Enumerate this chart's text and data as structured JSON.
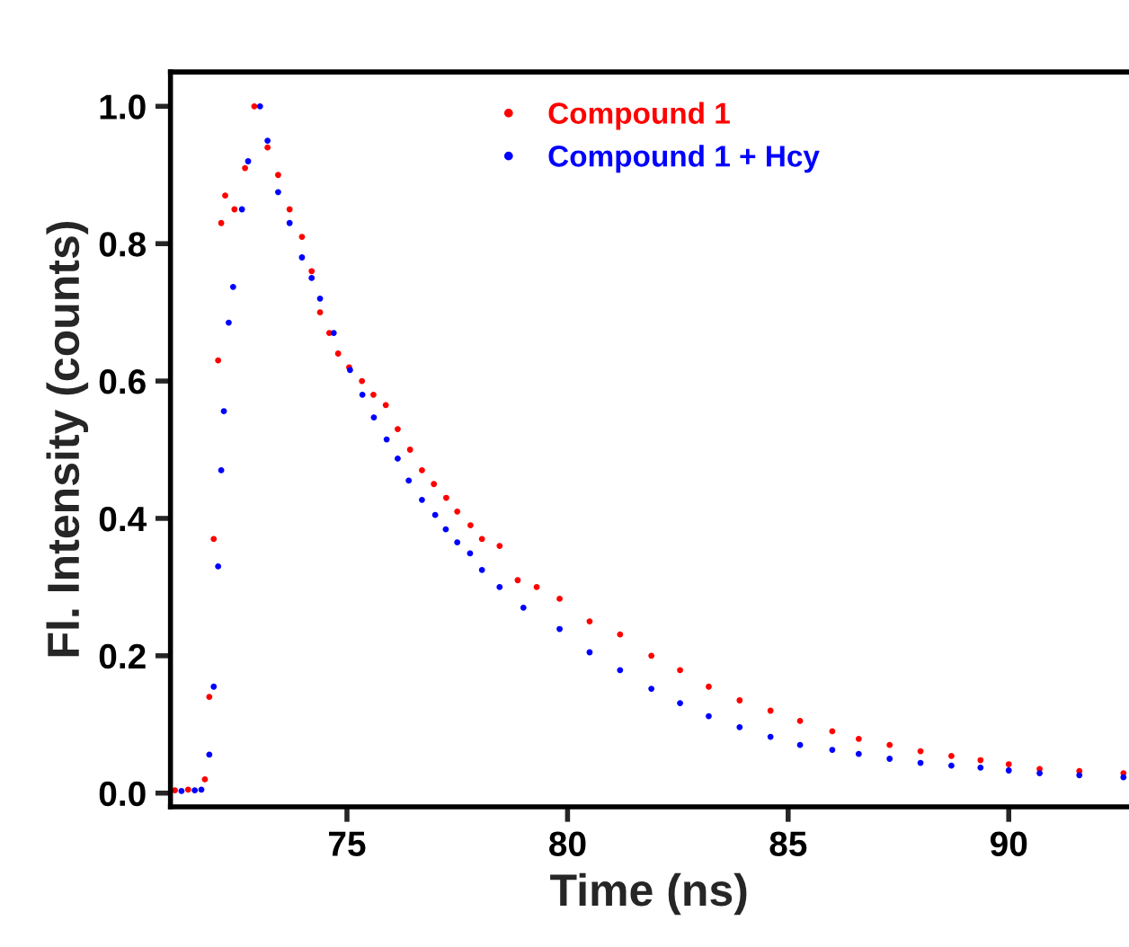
{
  "chart_data": {
    "type": "scatter",
    "xlabel": "Time (ns)",
    "ylabel": "Fl. Intensity (counts)",
    "xlim": [
      71,
      92.7
    ],
    "xticks": [
      75,
      80,
      85,
      90
    ],
    "ylim": [
      -0.02,
      1.05
    ],
    "yticks": [
      {
        "value": 0,
        "label": "0.0"
      },
      0.2,
      0.4,
      0.6,
      0.8,
      {
        "value": 1,
        "label": "1.0"
      }
    ],
    "legend": "top",
    "grid": false,
    "marker": "circle",
    "series": [
      {
        "name": "Compound 1",
        "color": "#ff0000",
        "x": [
          71.1,
          71.4,
          71.78,
          71.88,
          71.98,
          72.08,
          72.15,
          72.24,
          72.45,
          72.69,
          72.9,
          73.2,
          73.44,
          73.7,
          73.98,
          74.2,
          74.39,
          74.6,
          74.8,
          75.05,
          75.34,
          75.6,
          75.88,
          76.15,
          76.43,
          76.7,
          76.97,
          77.25,
          77.5,
          77.8,
          78.06,
          78.46,
          78.87,
          79.3,
          79.82,
          80.5,
          81.19,
          81.9,
          82.55,
          83.2,
          83.9,
          84.6,
          85.27,
          86.0,
          86.6,
          87.3,
          88.0,
          88.7,
          89.36,
          90.0,
          90.7,
          91.6,
          92.6
        ],
        "values": [
          0.004,
          0.005,
          0.02,
          0.14,
          0.37,
          0.63,
          0.83,
          0.87,
          0.85,
          0.91,
          1.0,
          0.94,
          0.9,
          0.85,
          0.81,
          0.76,
          0.7,
          0.67,
          0.64,
          0.62,
          0.6,
          0.58,
          0.565,
          0.53,
          0.5,
          0.47,
          0.45,
          0.43,
          0.41,
          0.39,
          0.37,
          0.36,
          0.31,
          0.3,
          0.283,
          0.25,
          0.231,
          0.2,
          0.179,
          0.155,
          0.135,
          0.12,
          0.105,
          0.09,
          0.079,
          0.07,
          0.061,
          0.054,
          0.048,
          0.042,
          0.035,
          0.032,
          0.029
        ]
      },
      {
        "name": "Compound 1 + Hcy",
        "color": "#0000ff",
        "x": [
          71.25,
          71.55,
          71.7,
          71.88,
          71.98,
          72.08,
          72.15,
          72.21,
          72.32,
          72.42,
          72.62,
          72.76,
          73.03,
          73.2,
          73.44,
          73.7,
          73.98,
          74.2,
          74.39,
          74.7,
          75.07,
          75.35,
          75.61,
          75.9,
          76.15,
          76.4,
          76.7,
          77.0,
          77.24,
          77.5,
          77.79,
          78.06,
          78.46,
          79.0,
          79.82,
          80.5,
          81.19,
          81.9,
          82.55,
          83.2,
          83.9,
          84.6,
          85.27,
          86.0,
          86.6,
          87.3,
          88.0,
          88.7,
          89.36,
          90.0,
          90.7,
          91.6,
          92.6
        ],
        "values": [
          0.003,
          0.004,
          0.005,
          0.056,
          0.155,
          0.33,
          0.47,
          0.556,
          0.685,
          0.737,
          0.85,
          0.92,
          1.0,
          0.95,
          0.875,
          0.83,
          0.78,
          0.75,
          0.72,
          0.67,
          0.616,
          0.58,
          0.547,
          0.515,
          0.487,
          0.455,
          0.427,
          0.405,
          0.384,
          0.365,
          0.349,
          0.325,
          0.3,
          0.27,
          0.239,
          0.205,
          0.179,
          0.152,
          0.131,
          0.112,
          0.096,
          0.082,
          0.07,
          0.063,
          0.057,
          0.05,
          0.044,
          0.04,
          0.037,
          0.033,
          0.029,
          0.026,
          0.023
        ]
      }
    ]
  }
}
